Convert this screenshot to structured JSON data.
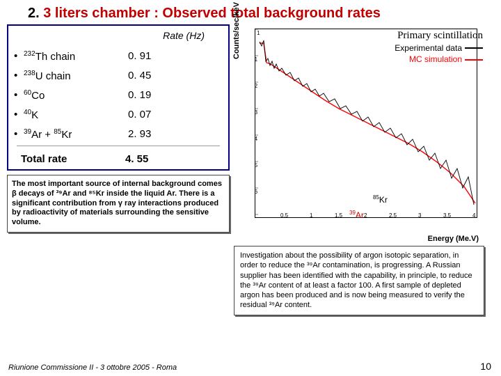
{
  "title_prefix": "2. ",
  "title_main": "3 liters chamber : Observed total background rates",
  "table": {
    "header": "Rate (Hz)",
    "rows": [
      {
        "isotope_pre": "232",
        "isotope_elem": "Th",
        "isotope_suf": " chain",
        "rate": "0. 91"
      },
      {
        "isotope_pre": "238",
        "isotope_elem": "U",
        "isotope_suf": " chain",
        "rate": "0. 45"
      },
      {
        "isotope_pre": "60",
        "isotope_elem": "Co",
        "isotope_suf": "",
        "rate": "0. 19"
      },
      {
        "isotope_pre": "40",
        "isotope_elem": "K",
        "isotope_suf": "",
        "rate": "0. 07"
      },
      {
        "isotope_pre": "39",
        "isotope_elem": "Ar + ",
        "isotope_suf": "Kr",
        "isotope_pre2": "85",
        "rate": "2. 93"
      }
    ],
    "total_label": "Total rate",
    "total_value": "4. 55"
  },
  "note": "The most important source of internal background comes β decays of ³⁹Ar and ⁸⁵Kr inside the liquid Ar. There is a significant contribution from γ ray interactions produced by radioactivity of materials surrounding the sensitive volume.",
  "chart": {
    "y_label": "Counts/sec/keV",
    "x_label": "Energy (Me.V)",
    "legend_title": "Primary scintillation",
    "legend_items": [
      {
        "label": "Experimental data",
        "color": "#000000"
      },
      {
        "label": "MC simulation",
        "color": "#ff0000"
      }
    ],
    "y_ticks": [
      "1",
      "-1",
      "-2",
      "-3",
      "-4",
      "-5",
      "-6"
    ],
    "x_ticks": [
      "0.5",
      "1",
      "1.5",
      "2",
      "2.5",
      "3",
      "3.5",
      "4"
    ],
    "annot_kr_pre": "85",
    "annot_kr": "Kr",
    "annot_ar_pre": "39",
    "annot_ar": "Ar",
    "exp_color": "#000000",
    "mc_color": "#ff0000",
    "bg_color": "#ffffff",
    "axis_color": "#000000"
  },
  "investigation": "Investigation about the possibility of argon isotopic separation, in order to reduce the ³⁹Ar contamination, is progressing. A Russian supplier has been identified with the capability, in principle, to reduce the ³⁹Ar content of at least a factor 100. A first sample of depleted argon has been produced and is now being measured to verify the residual ³⁹Ar content.",
  "footer": "Riunione Commissione II - 3 ottobre 2005 - Roma",
  "page": "10"
}
